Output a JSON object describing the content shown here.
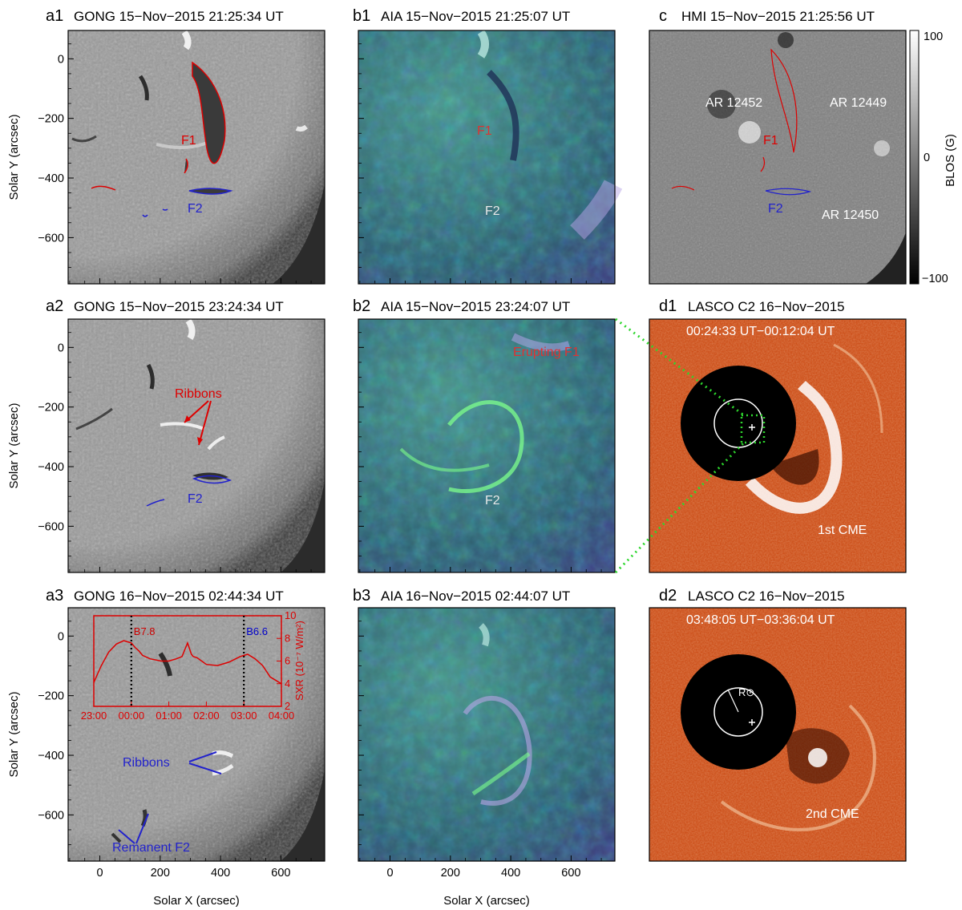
{
  "panels": {
    "a1": {
      "label": "a1",
      "title": "GONG 15−Nov−2015 21:25:34 UT"
    },
    "a2": {
      "label": "a2",
      "title": "GONG 15−Nov−2015 23:24:34 UT"
    },
    "a3": {
      "label": "a3",
      "title": "GONG 16−Nov−2015 02:44:34 UT"
    },
    "b1": {
      "label": "b1",
      "title": "AIA 15−Nov−2015 21:25:07 UT"
    },
    "b2": {
      "label": "b2",
      "title": "AIA 15−Nov−2015 23:24:07 UT"
    },
    "b3": {
      "label": "b3",
      "title": "AIA 16−Nov−2015 02:44:07 UT"
    },
    "c": {
      "label": "c",
      "title": "HMI 15−Nov−2015 21:25:56 UT"
    },
    "d1": {
      "label": "d1",
      "title": "LASCO C2  16−Nov−2015",
      "subtitle": "00:24:33 UT−00:12:04 UT"
    },
    "d2": {
      "label": "d2",
      "title": "LASCO C2  16−Nov−2015",
      "subtitle": "03:48:05 UT−03:36:04 UT"
    }
  },
  "axes": {
    "ylabel": "Solar Y (arcsec)",
    "xlabel": "Solar X (arcsec)",
    "y_ticks": [
      "0",
      "−200",
      "−400",
      "−600"
    ],
    "x_ticks": [
      "0",
      "200",
      "400",
      "600"
    ]
  },
  "annotations": {
    "F1": "F1",
    "F2": "F2",
    "ribbons": "Ribbons",
    "remanent_f2": "Remanent F2",
    "erupting_f1": "Erupting F1",
    "ar_12452": "AR 12452",
    "ar_12449": "AR 12449",
    "ar_12450": "AR 12450",
    "cme1": "1st CME",
    "cme2": "2nd CME",
    "rsun": "R⊙"
  },
  "colorbar": {
    "label": "BLOS (G)",
    "ticks": [
      "100",
      "0",
      "−100"
    ],
    "range": [
      -100,
      100
    ]
  },
  "chart_data": {
    "type": "line",
    "ylabel": "SXR (10⁻⁷ W/m²)",
    "ylim": [
      2,
      10
    ],
    "y_ticks": [
      "2",
      "4",
      "6",
      "8",
      "10"
    ],
    "x_tick_labels": [
      "23:00",
      "00:00",
      "01:00",
      "02:00",
      "03:00",
      "04:00"
    ],
    "x_hours": [
      23,
      24,
      25,
      26,
      27,
      28
    ],
    "series": [
      {
        "x": [
          23.0,
          23.2,
          23.4,
          23.6,
          23.8,
          24.0,
          24.1,
          24.2,
          24.3,
          24.5,
          24.8,
          25.0,
          25.2,
          25.35,
          25.5,
          25.6,
          25.65,
          25.75,
          26.0,
          26.3,
          26.6,
          26.9,
          27.1,
          27.3,
          27.5,
          27.7,
          28.0
        ],
        "y": [
          4.1,
          5.6,
          6.8,
          7.5,
          7.8,
          7.6,
          7.2,
          6.9,
          6.5,
          6.2,
          6.0,
          6.0,
          6.2,
          6.4,
          7.6,
          6.6,
          6.4,
          6.3,
          5.7,
          5.6,
          5.9,
          6.4,
          6.6,
          6.2,
          5.6,
          4.6,
          4.0
        ]
      }
    ],
    "peaks": [
      {
        "x": 24.0,
        "label": "B7.8",
        "color": "#cc0000"
      },
      {
        "x": 27.0,
        "label": "B6.6",
        "color": "#0000cc"
      }
    ]
  }
}
